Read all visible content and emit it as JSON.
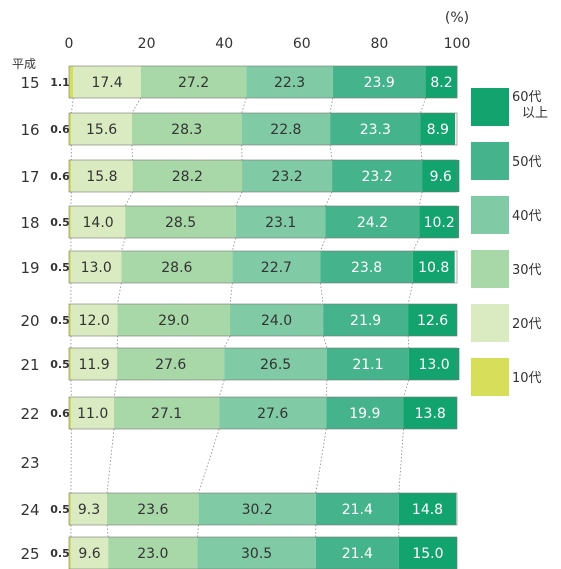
{
  "chart_data": {
    "type": "bar",
    "orientation": "horizontal",
    "stacked": true,
    "unit_label": "(%)",
    "era_label": "平成",
    "xlim": [
      0,
      100
    ],
    "x_ticks": [
      0,
      20,
      40,
      60,
      80,
      100
    ],
    "categories": [
      "15",
      "16",
      "17",
      "18",
      "19",
      "20",
      "21",
      "22",
      "23",
      "24",
      "25"
    ],
    "series": [
      {
        "name": "10代",
        "color": "#d7df5a",
        "values": [
          1.1,
          0.6,
          0.6,
          0.5,
          0.5,
          0.5,
          0.5,
          0.6,
          null,
          0.5,
          0.5
        ]
      },
      {
        "name": "20代",
        "color": "#dbebc1",
        "values": [
          17.4,
          15.6,
          15.8,
          14.0,
          13.0,
          12.0,
          11.9,
          11.0,
          null,
          9.3,
          9.6
        ]
      },
      {
        "name": "30代",
        "color": "#a9d8a8",
        "values": [
          27.2,
          28.3,
          28.2,
          28.5,
          28.6,
          29.0,
          27.6,
          27.1,
          null,
          23.6,
          23.0
        ]
      },
      {
        "name": "40代",
        "color": "#80cba6",
        "values": [
          22.3,
          22.8,
          23.2,
          23.1,
          22.7,
          24.0,
          26.5,
          27.6,
          null,
          30.2,
          30.5
        ]
      },
      {
        "name": "50代",
        "color": "#45b38c",
        "values": [
          23.9,
          23.3,
          23.2,
          24.2,
          23.8,
          21.9,
          21.1,
          19.9,
          null,
          21.4,
          21.4
        ]
      },
      {
        "name": "60代\n以上",
        "color": "#12a36e",
        "values": [
          8.2,
          8.9,
          9.6,
          10.2,
          10.8,
          12.6,
          13.0,
          13.8,
          null,
          14.8,
          15.0
        ]
      }
    ],
    "legend_order": [
      "60代\n以上",
      "50代",
      "40代",
      "30代",
      "20代",
      "10代"
    ],
    "legend_position": "right",
    "grid": false
  }
}
